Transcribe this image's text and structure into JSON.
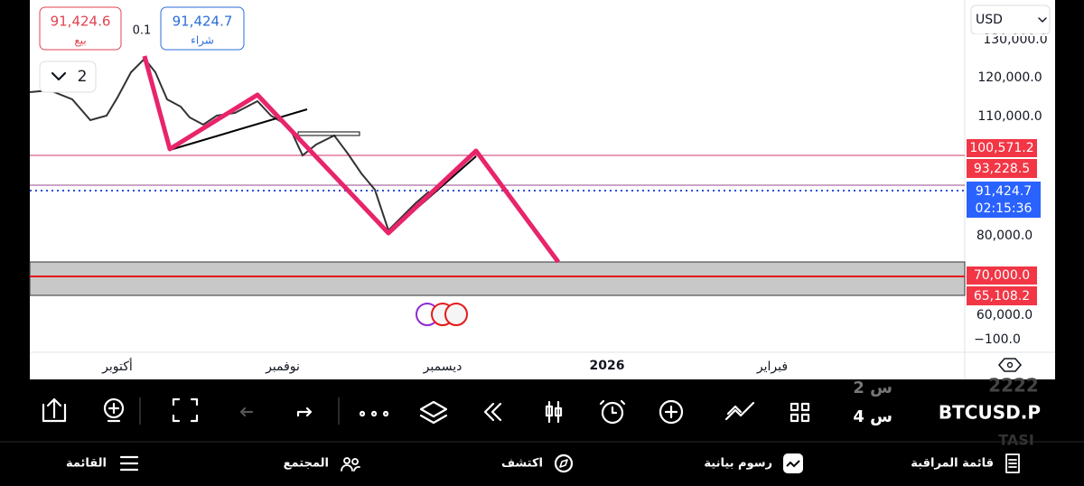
{
  "header": {
    "sell_price": "91,424.6",
    "sell_label": "بيع",
    "spread": "0.1",
    "buy_price": "91,424.7",
    "buy_label": "شراء",
    "interval": "2",
    "currency": "USD"
  },
  "price_axis": {
    "labels": [
      "130,000.0",
      "120,000.0",
      "110,000.0",
      "80,000.0",
      "60,000.0",
      "−100.0"
    ]
  },
  "price_tags": {
    "upper": "100,571.2",
    "mid": "93,228.5",
    "last": "91,424.7",
    "countdown": "02:15:36",
    "support_top": "70,000.0",
    "support_bottom": "65,108.2"
  },
  "time_axis": {
    "labels": [
      "أكتوبر",
      "نوفمبر",
      "ديسمبر",
      "2026",
      "فبراير"
    ]
  },
  "watch_overlay": {
    "symbol": "BTCUSD.P",
    "faded": "2222",
    "row1": "2 س",
    "row2": "4 س",
    "faded2": "TASI"
  },
  "nav": {
    "items": [
      "القائمة",
      "المجتمع",
      "اكتشف",
      "رسوم بيانية",
      "قائمة المراقبة"
    ]
  }
}
